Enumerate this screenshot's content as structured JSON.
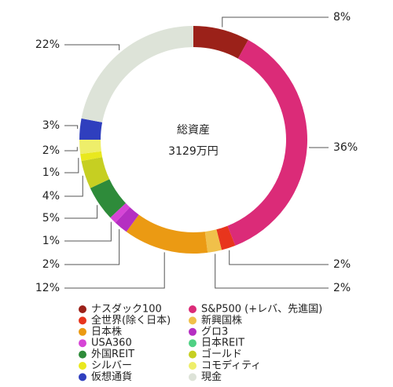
{
  "chart_data": {
    "type": "donut",
    "center_title": "総資産",
    "center_value": "3129万円",
    "categories": [
      "ナスダック100",
      "S&P500 (+レバ、先進国)",
      "全世界(除く日本)",
      "新興国株",
      "日本株",
      "グロ3",
      "USA360",
      "日本REIT",
      "外国REIT",
      "ゴールド",
      "シルバー",
      "コモディティ",
      "仮想通貨",
      "現金"
    ],
    "values": [
      8,
      36,
      2,
      2,
      12,
      2,
      1,
      0,
      5,
      4,
      1,
      2,
      3,
      22
    ],
    "value_labels": [
      "8%",
      "36%",
      "2%",
      "2%",
      "12%",
      "2%",
      "1%",
      null,
      "5%",
      "4%",
      "1%",
      "2%",
      "3%",
      "22%"
    ],
    "colors": [
      "#9b2119",
      "#db2b78",
      "#e8351d",
      "#f0c04a",
      "#eb9a13",
      "#b52fc2",
      "#d645d6",
      "#4fd184",
      "#2e8b3a",
      "#c6cf22",
      "#e9e81e",
      "#eeee6a",
      "#2f3fbe",
      "#dde3d8"
    ]
  }
}
